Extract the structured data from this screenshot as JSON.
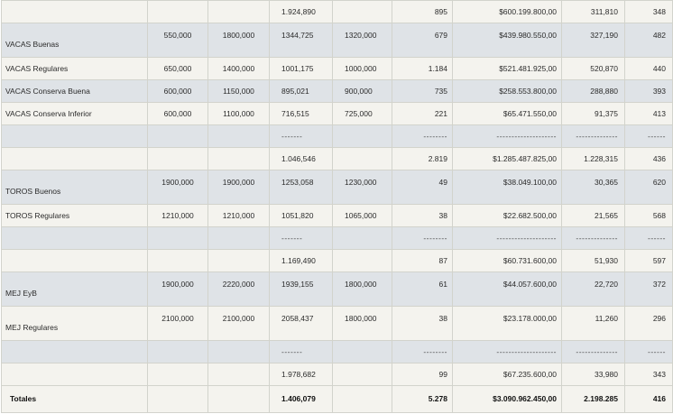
{
  "rows": [
    {
      "type": "light",
      "h": 25,
      "label": "",
      "c1": "",
      "c2": "",
      "c3": "1.924,890",
      "c4": "",
      "c5": "895",
      "c6": "$600.199.800,00",
      "c7": "311,810",
      "c8": "348"
    },
    {
      "type": "dark",
      "h": 38,
      "layout": "split",
      "label": "VACAS Buenas",
      "c1": "550,000",
      "c2": "1800,000",
      "c3": "1344,725",
      "c4": "1320,000",
      "c5": "679",
      "c6": "$439.980.550,00",
      "c7": "327,190",
      "c8": "482"
    },
    {
      "type": "light",
      "h": 25,
      "label": "VACAS Regulares",
      "c1": "650,000",
      "c2": "1400,000",
      "c3": "1001,175",
      "c4": "1000,000",
      "c5": "1.184",
      "c6": "$521.481.925,00",
      "c7": "520,870",
      "c8": "440"
    },
    {
      "type": "dark",
      "h": 25,
      "label": "VACAS Conserva Buena",
      "c1": "600,000",
      "c2": "1150,000",
      "c3": "895,021",
      "c4": "900,000",
      "c5": "735",
      "c6": "$258.553.800,00",
      "c7": "288,880",
      "c8": "393"
    },
    {
      "type": "light",
      "h": 25,
      "label": "VACAS Conserva Inferior",
      "c1": "600,000",
      "c2": "1100,000",
      "c3": "716,515",
      "c4": "725,000",
      "c5": "221",
      "c6": "$65.471.550,00",
      "c7": "91,375",
      "c8": "413"
    },
    {
      "type": "dark sep",
      "h": 25,
      "label": "",
      "c1": "",
      "c2": "",
      "c3": "-------",
      "c4": "",
      "c5": "--------",
      "c6": "--------------------",
      "c7": "--------------",
      "c8": "------"
    },
    {
      "type": "light",
      "h": 25,
      "label": "",
      "c1": "",
      "c2": "",
      "c3": "1.046,546",
      "c4": "",
      "c5": "2.819",
      "c6": "$1.285.487.825,00",
      "c7": "1.228,315",
      "c8": "436"
    },
    {
      "type": "dark",
      "h": 38,
      "layout": "split",
      "label": "TOROS Buenos",
      "c1": "1900,000",
      "c2": "1900,000",
      "c3": "1253,058",
      "c4": "1230,000",
      "c5": "49",
      "c6": "$38.049.100,00",
      "c7": "30,365",
      "c8": "620"
    },
    {
      "type": "light",
      "h": 25,
      "label": "TOROS Regulares",
      "c1": "1210,000",
      "c2": "1210,000",
      "c3": "1051,820",
      "c4": "1065,000",
      "c5": "38",
      "c6": "$22.682.500,00",
      "c7": "21,565",
      "c8": "568"
    },
    {
      "type": "dark sep",
      "h": 25,
      "label": "",
      "c1": "",
      "c2": "",
      "c3": "-------",
      "c4": "",
      "c5": "--------",
      "c6": "--------------------",
      "c7": "--------------",
      "c8": "------"
    },
    {
      "type": "light",
      "h": 25,
      "label": "",
      "c1": "",
      "c2": "",
      "c3": "1.169,490",
      "c4": "",
      "c5": "87",
      "c6": "$60.731.600,00",
      "c7": "51,930",
      "c8": "597"
    },
    {
      "type": "dark",
      "h": 38,
      "layout": "split",
      "label": "MEJ EyB",
      "c1": "1900,000",
      "c2": "2220,000",
      "c3": "1939,155",
      "c4": "1800,000",
      "c5": "61",
      "c6": "$44.057.600,00",
      "c7": "22,720",
      "c8": "372"
    },
    {
      "type": "light",
      "h": 38,
      "layout": "split",
      "label": "MEJ Regulares",
      "c1": "2100,000",
      "c2": "2100,000",
      "c3": "2058,437",
      "c4": "1800,000",
      "c5": "38",
      "c6": "$23.178.000,00",
      "c7": "11,260",
      "c8": "296"
    },
    {
      "type": "dark sep",
      "h": 25,
      "label": "",
      "c1": "",
      "c2": "",
      "c3": "-------",
      "c4": "",
      "c5": "--------",
      "c6": "--------------------",
      "c7": "--------------",
      "c8": "------"
    },
    {
      "type": "light",
      "h": 25,
      "label": "",
      "c1": "",
      "c2": "",
      "c3": "1.978,682",
      "c4": "",
      "c5": "99",
      "c6": "$67.235.600,00",
      "c7": "33,980",
      "c8": "343"
    },
    {
      "type": "tot",
      "h": 30,
      "label": "Totales",
      "c1": "",
      "c2": "",
      "c3": "1.406,079",
      "c4": "",
      "c5": "5.278",
      "c6": "$3.090.962.450,00",
      "c7": "2.198.285",
      "c8": "416"
    }
  ]
}
